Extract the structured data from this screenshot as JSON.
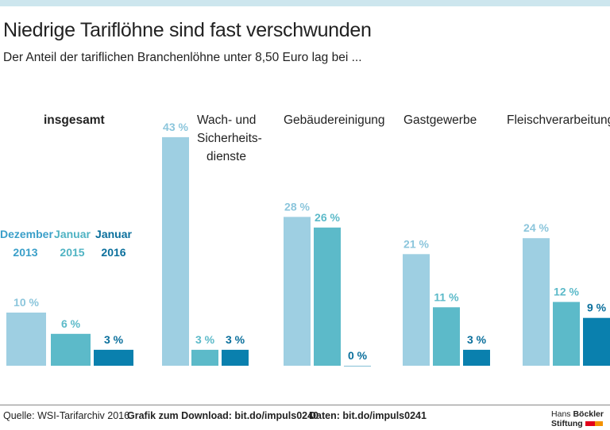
{
  "title": "Niedrige Tariflöhne sind fast verschwunden",
  "subtitle": "Der Anteil der tariflichen Branchenlöhne unter 8,50 Euro lag bei ...",
  "legend": [
    {
      "line1": "Dezember",
      "line2": "2013",
      "color": "#3a9fc9"
    },
    {
      "line1": "Januar",
      "line2": "2015",
      "color": "#4fb3c3"
    },
    {
      "line1": "Januar",
      "line2": "2016",
      "color": "#0a6f9c"
    }
  ],
  "chart_data": {
    "type": "bar",
    "categories": [
      "insgesamt",
      "Wach- und Sicherheits-dienste",
      "Gebäudereinigung",
      "Gastgewerbe",
      "Fleischverarbeitung"
    ],
    "series": [
      {
        "name": "Dezember 2013",
        "values": [
          10,
          43,
          28,
          21,
          24
        ],
        "color": "#9ecfe2"
      },
      {
        "name": "Januar 2015",
        "values": [
          6,
          3,
          26,
          11,
          12
        ],
        "color": "#5cbac9"
      },
      {
        "name": "Januar 2016",
        "values": [
          3,
          3,
          0,
          3,
          9
        ],
        "color": "#0a80ae"
      }
    ],
    "unit": "%",
    "ylim": [
      0,
      45
    ]
  },
  "category_lines": [
    [
      "insgesamt"
    ],
    [
      "Wach- und",
      "Sicherheits-",
      "dienste"
    ],
    [
      "Gebäudereinigung"
    ],
    [
      "Gastgewerbe"
    ],
    [
      "Fleischverarbeitung"
    ]
  ],
  "footer": {
    "source": "Quelle: WSI-Tarifarchiv 2016",
    "download": "Grafik zum Download: bit.do/impuls0240",
    "data": "Daten: bit.do/impuls0241"
  },
  "logo": {
    "line1a": "Hans",
    "line1b": "Böckler",
    "line2": "Stiftung"
  }
}
